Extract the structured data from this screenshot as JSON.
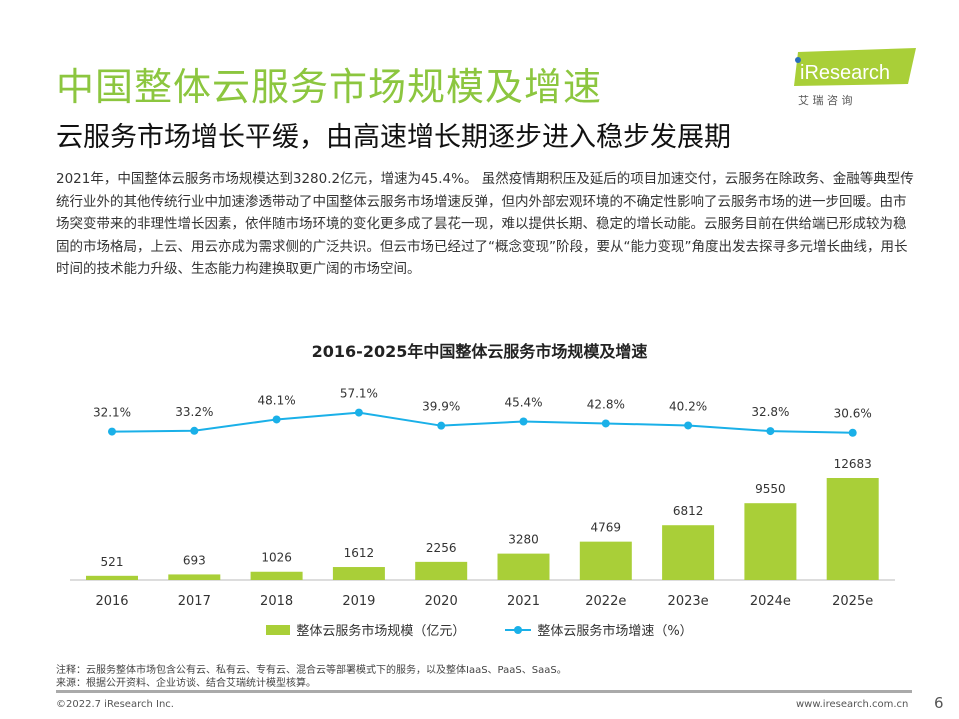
{
  "header": {
    "title": "中国整体云服务市场规模及增速",
    "subtitle": "云服务市场增长平缓，由高速增长期逐步进入稳步发展期",
    "logo_text": "iResearch",
    "logo_sub": "艾 瑞 咨 询",
    "brand_color": "#8cc63f"
  },
  "body": "2021年，中国整体云服务市场规模达到3280.2亿元，增速为45.4%。 虽然疫情期积压及延后的项目加速交付，云服务在除政务、金融等典型传统行业外的其他传统行业中加速渗透带动了中国整体云服务市场增速反弹，但内外部宏观环境的不确定性影响了云服务市场的进一步回暖。由市场突变带来的非理性增长因素，依伴随市场环境的变化更多成了昙花一现，难以提供长期、稳定的增长动能。云服务目前在供给端已形成较为稳固的市场格局，上云、用云亦成为需求侧的广泛共识。但云市场已经过了“概念变现”阶段，要从“能力变现”角度出发去探寻多元增长曲线，用长时间的技术能力升级、生态能力构建换取更广阔的市场空间。",
  "chart_data": {
    "type": "bar+line",
    "title": "2016-2025年中国整体云服务市场规模及增速",
    "categories": [
      "2016",
      "2017",
      "2018",
      "2019",
      "2020",
      "2021",
      "2022e",
      "2023e",
      "2024e",
      "2025e"
    ],
    "series": [
      {
        "name": "整体云服务市场规模（亿元）",
        "type": "bar",
        "color": "#a9cf38",
        "values": [
          521,
          693,
          1026,
          1612,
          2256,
          3280,
          4769,
          6812,
          9550,
          12683
        ]
      },
      {
        "name": "整体云服务市场增速（%）",
        "type": "line",
        "color": "#1ab0e8",
        "values": [
          32.1,
          33.2,
          48.1,
          57.1,
          39.9,
          45.4,
          42.8,
          40.2,
          32.8,
          30.6
        ]
      }
    ],
    "legend": "bottom",
    "grid": false
  },
  "footer": {
    "note": "注释：云服务整体市场包含公有云、私有云、专有云、混合云等部署模式下的服务，以及整体IaaS、PaaS、SaaS。",
    "source": "来源：根据公开资料、企业访谈、结合艾瑞统计模型核算。",
    "copyright": "©2022.7 iResearch Inc.",
    "site": "www.iresearch.com.cn",
    "page": "6"
  }
}
